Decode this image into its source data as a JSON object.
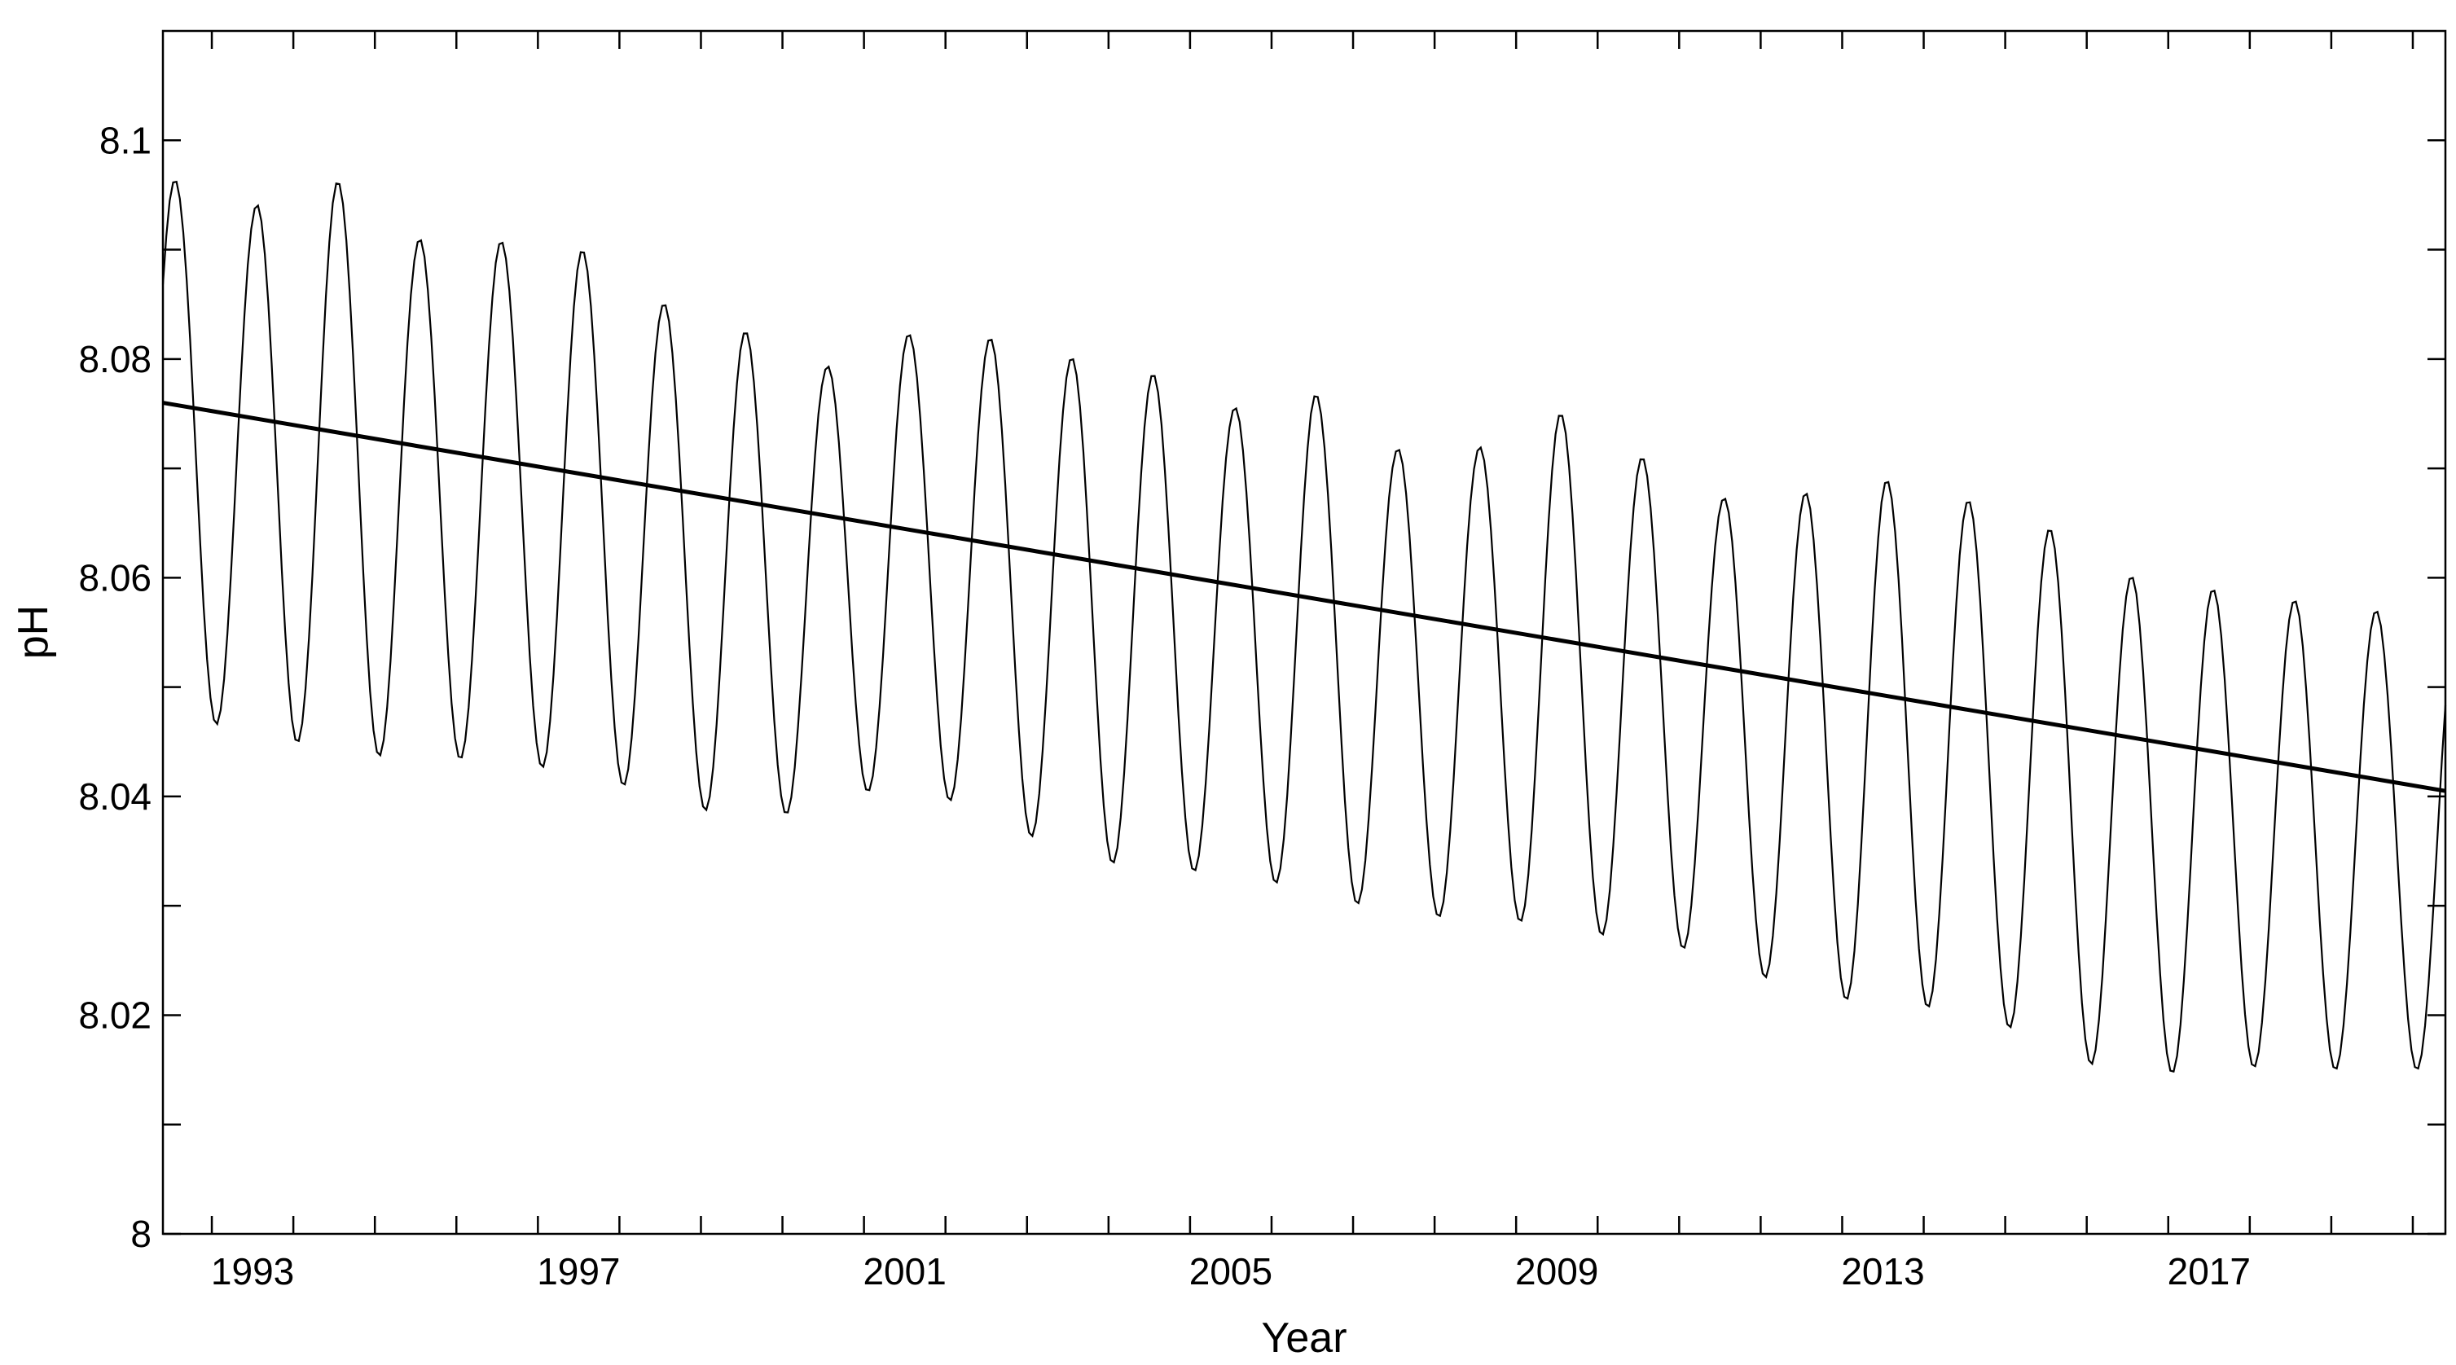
{
  "chart_data": {
    "type": "line",
    "title": "",
    "xlabel": "Year",
    "ylabel": "pH",
    "xlim": [
      1991.9,
      2019.9
    ],
    "ylim": [
      8.0,
      8.11
    ],
    "x_ticks": [
      1993,
      1997,
      2001,
      2005,
      2009,
      2013,
      2017
    ],
    "y_ticks": [
      "8",
      "8.02",
      "8.04",
      "8.06",
      "8.08",
      "8.1"
    ],
    "y_minor_ticks": [
      8.01,
      8.03,
      8.05,
      8.07,
      8.09
    ],
    "grid": false,
    "legend": "none",
    "colors": {
      "series": "#000000",
      "axis": "#000000",
      "background": "#ffffff"
    },
    "series": [
      {
        "style": "seasonal-cycle",
        "x": [
          1992.0,
          1993.0,
          1994.0,
          1995.0,
          1996.0,
          1997.0,
          1998.0,
          1999.0,
          2000.0,
          2001.0,
          2002.0,
          2003.0,
          2004.0,
          2005.0,
          2006.0,
          2007.0,
          2008.0,
          2009.0,
          2010.0,
          2011.0,
          2012.0,
          2013.0,
          2014.0,
          2015.0,
          2016.0,
          2017.0,
          2018.0,
          2019.0
        ],
        "annual_max": [
          8.0965,
          8.094,
          8.0965,
          8.091,
          8.0908,
          8.0902,
          8.0852,
          8.0827,
          8.0792,
          8.0823,
          8.082,
          8.0802,
          8.0788,
          8.0755,
          8.077,
          8.0718,
          8.0718,
          8.0752,
          8.0712,
          8.0673,
          8.0677,
          8.069,
          8.0672,
          8.0647,
          8.0602,
          8.059,
          8.058,
          8.057
        ],
        "annual_min": [
          8.0495,
          8.0442,
          8.0455,
          8.0422,
          8.0444,
          8.0412,
          8.0408,
          8.037,
          8.0395,
          8.0412,
          8.0383,
          8.0347,
          8.0332,
          8.0331,
          8.0312,
          8.0293,
          8.0287,
          8.0284,
          8.0264,
          8.0258,
          8.0215,
          8.0213,
          8.0202,
          8.0177,
          8.0137,
          8.0155,
          8.015,
          8.015
        ]
      },
      {
        "style": "linear-trend",
        "x": [
          1991.9,
          2019.9
        ],
        "y": [
          8.076,
          8.0405
        ]
      }
    ]
  }
}
